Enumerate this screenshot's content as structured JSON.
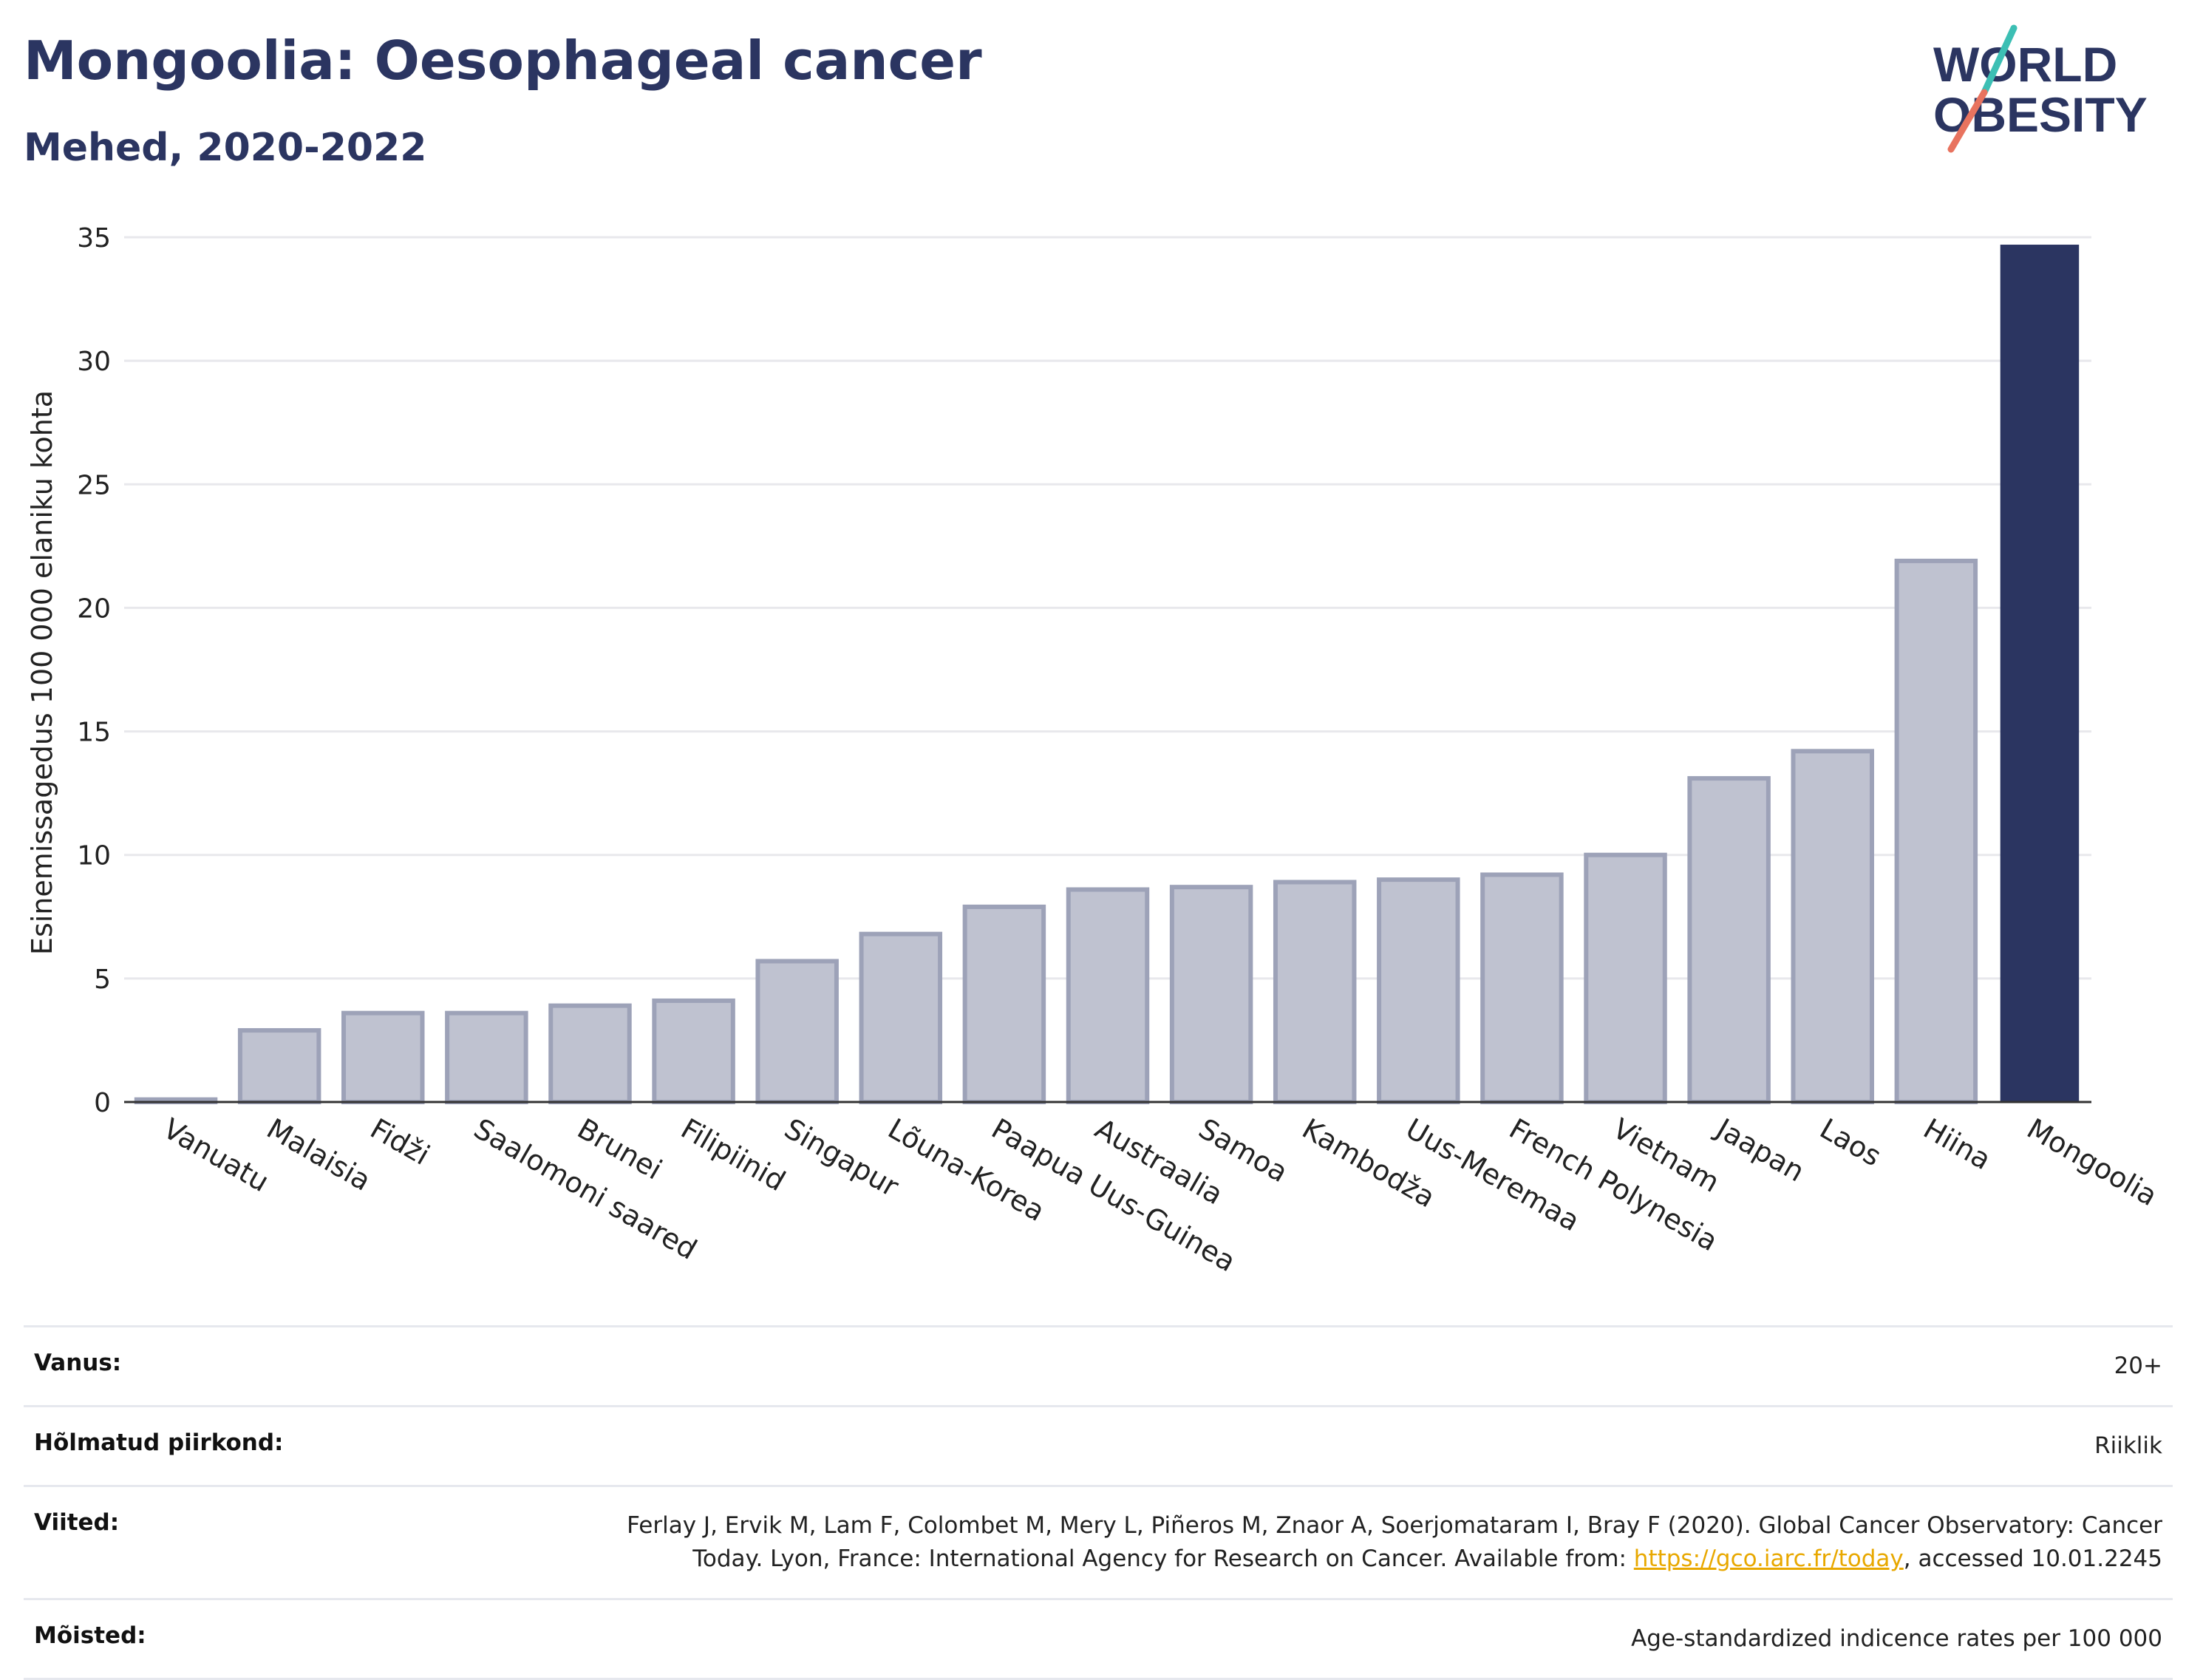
{
  "header": {
    "title": "Mongoolia: Oesophageal cancer",
    "subtitle": "Mehed, 2020-2022"
  },
  "logo": {
    "line1": "WORLD",
    "line2": "OBESITY",
    "colors": {
      "text": "#2b3561",
      "slash_top": "#3cbfb4",
      "slash_bottom": "#e8735f"
    }
  },
  "chart_data": {
    "type": "bar",
    "ylabel": "Esinemissagedus 100 000 elaniku kohta",
    "xlabel": "",
    "ylim": [
      0,
      35
    ],
    "yticks": [
      0,
      5,
      10,
      15,
      20,
      25,
      30,
      35
    ],
    "grid": true,
    "categories": [
      "Vanuatu",
      "Malaisia",
      "Fidži",
      "Saalomoni saared",
      "Brunei",
      "Filipiinid",
      "Singapur",
      "Lõuna-Korea",
      "Paapua Uus-Guinea",
      "Austraalia",
      "Samoa",
      "Kambodža",
      "Uus-Meremaa",
      "French Polynesia",
      "Vietnam",
      "Jaapan",
      "Laos",
      "Hiina",
      "Mongoolia"
    ],
    "values": [
      0.1,
      2.9,
      3.6,
      3.6,
      3.9,
      4.1,
      5.7,
      6.8,
      7.9,
      8.6,
      8.7,
      8.9,
      9.0,
      9.2,
      10.0,
      13.1,
      14.2,
      21.9,
      34.7
    ],
    "highlight": "Mongoolia",
    "colors": {
      "bar": "#bfc2d0",
      "bar_border": "#9da2b8",
      "highlight": "#2b3561",
      "grid": "#e8e8ec",
      "axis": "#333333"
    }
  },
  "info": {
    "age_label": "Vanus:",
    "age_value": "20+",
    "region_label": "Hõlmatud piirkond:",
    "region_value": "Riiklik",
    "refs_label": "Viited:",
    "refs_text_before": "Ferlay J, Ervik M, Lam F, Colombet M, Mery L, Piñeros M, Znaor A, Soerjomataram I, Bray F (2020). Global Cancer Observatory: Cancer Today. Lyon, France: International Agency for Research on Cancer. Available from: ",
    "refs_link": "https://gco.iarc.fr/today",
    "refs_text_after": ", accessed 10.01.2245",
    "definitions_label": "Mõisted:",
    "definitions_value": "Age-standardized indicence rates per 100 000"
  }
}
